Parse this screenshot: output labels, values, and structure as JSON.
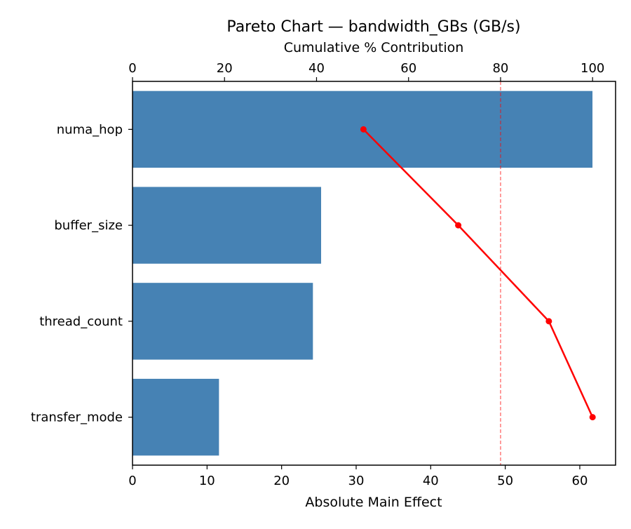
{
  "chart_data": {
    "type": "bar",
    "orientation": "horizontal",
    "title": "Pareto Chart — bandwidth_GBs (GB/s)",
    "xlabel": "Absolute Main Effect",
    "x2label": "Cumulative % Contribution",
    "ylabel": "",
    "categories": [
      "numa_hop",
      "buffer_size",
      "thread_count",
      "transfer_mode"
    ],
    "values": [
      61.7,
      25.3,
      24.2,
      11.6
    ],
    "cumulative_percent": [
      50.2,
      70.8,
      90.5,
      100.0
    ],
    "xlim": [
      0,
      64.8
    ],
    "x2lim": [
      0,
      105
    ],
    "xticks": [
      0,
      10,
      20,
      30,
      40,
      50,
      60
    ],
    "x2ticks": [
      0,
      20,
      40,
      60,
      80,
      100
    ],
    "threshold_percent": 80,
    "grid": false,
    "legend": null,
    "colors": {
      "bar": "#4682b4",
      "cumulative_line": "#ff0000",
      "threshold_line": "#ff0000"
    }
  }
}
